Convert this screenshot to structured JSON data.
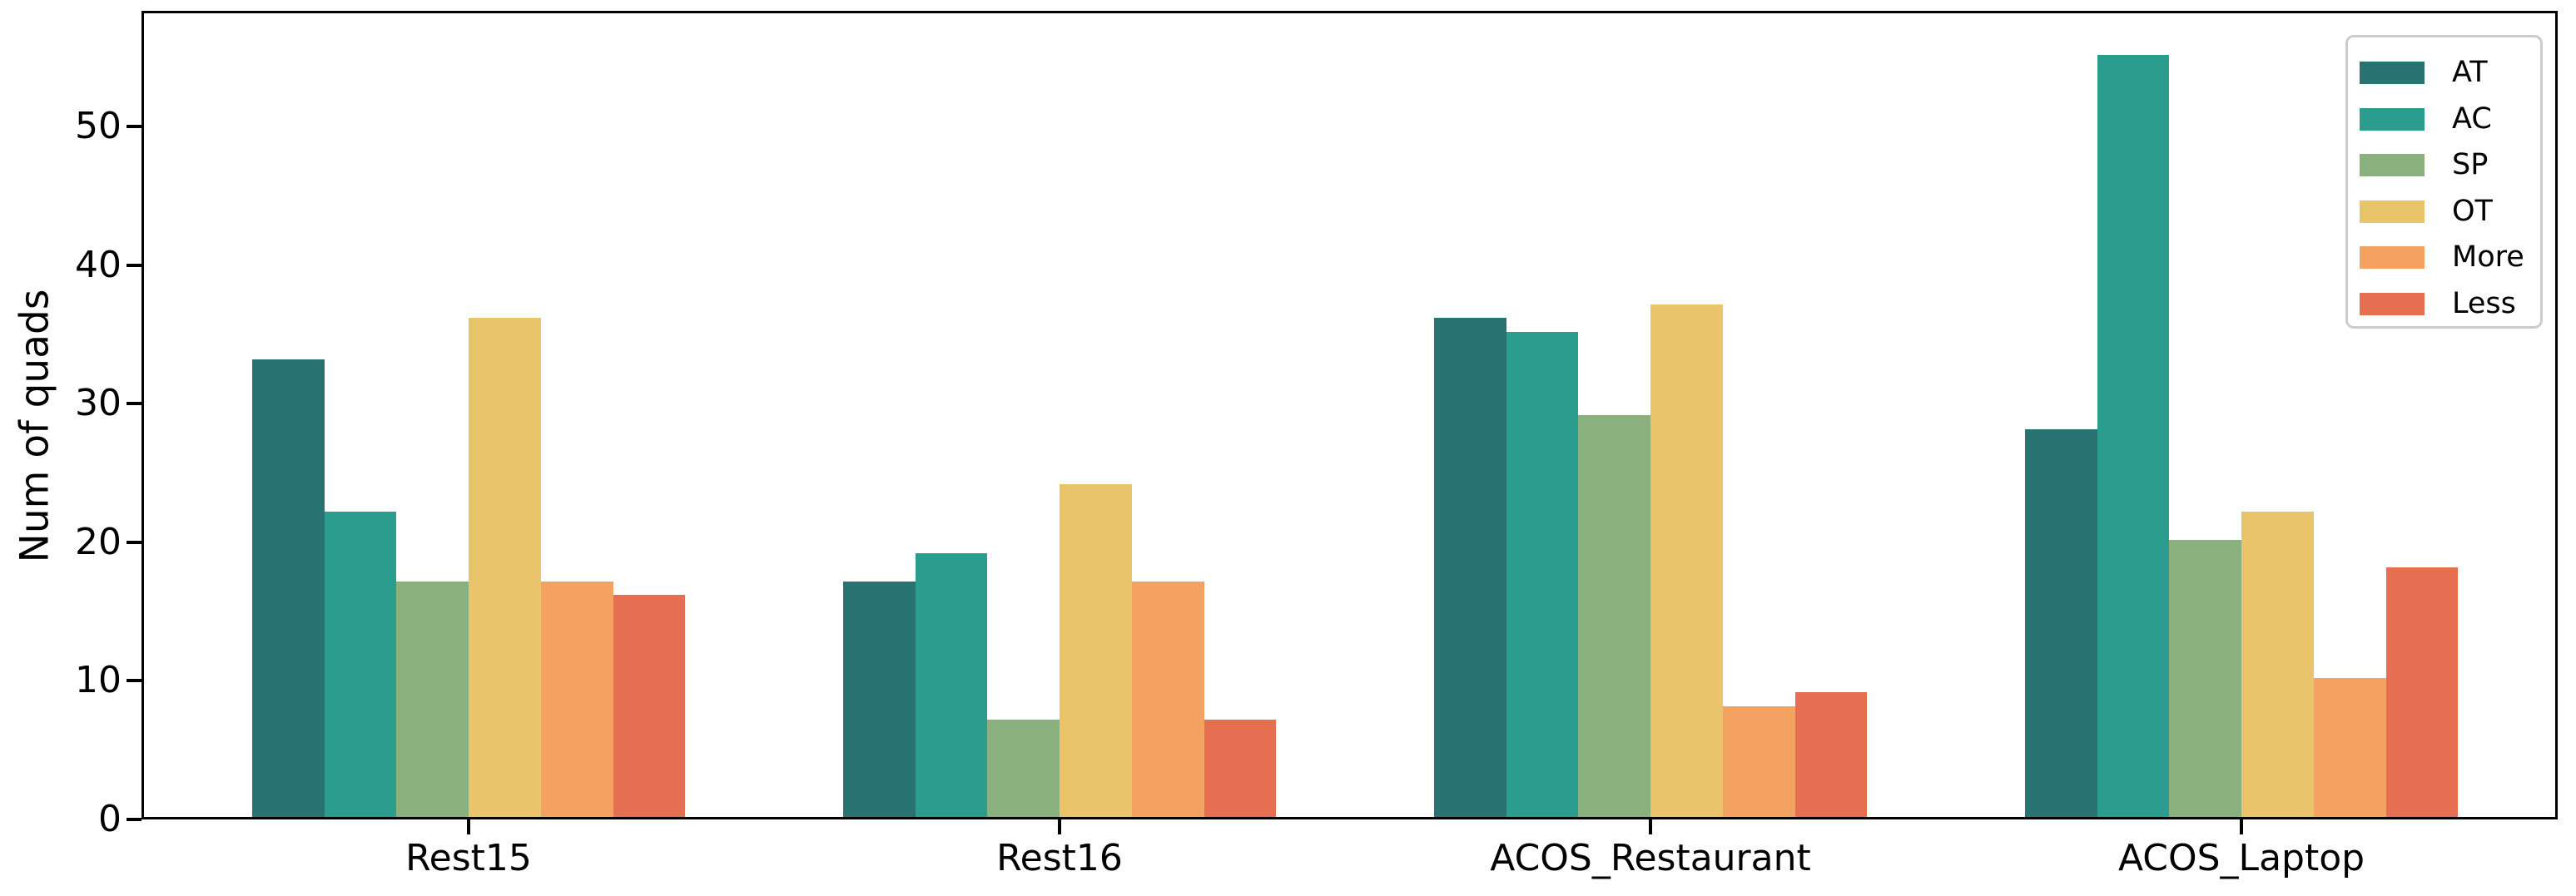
{
  "chart_data": {
    "type": "bar",
    "title": "",
    "xlabel": "",
    "ylabel": "Num of quads",
    "categories": [
      "Rest15",
      "Rest16",
      "ACOS_Restaurant",
      "ACOS_Laptop"
    ],
    "series": [
      {
        "name": "AT",
        "color": "#287271",
        "values": [
          33,
          17,
          36,
          28
        ]
      },
      {
        "name": "AC",
        "color": "#2a9d8f",
        "values": [
          22,
          19,
          35,
          55
        ]
      },
      {
        "name": "SP",
        "color": "#8ab17d",
        "values": [
          17,
          7,
          29,
          20
        ]
      },
      {
        "name": "OT",
        "color": "#e9c46a",
        "values": [
          36,
          24,
          37,
          22
        ]
      },
      {
        "name": "More",
        "color": "#f4a261",
        "values": [
          17,
          17,
          8,
          10
        ]
      },
      {
        "name": "Less",
        "color": "#e76f51",
        "values": [
          16,
          7,
          9,
          18
        ]
      }
    ],
    "y_ticks": [
      0,
      10,
      20,
      30,
      40,
      50
    ],
    "ylim": [
      0,
      58.3
    ],
    "grid": false,
    "legend_position": "upper right",
    "axis_color": "#000000",
    "legend_border_color": "#cccccc"
  }
}
